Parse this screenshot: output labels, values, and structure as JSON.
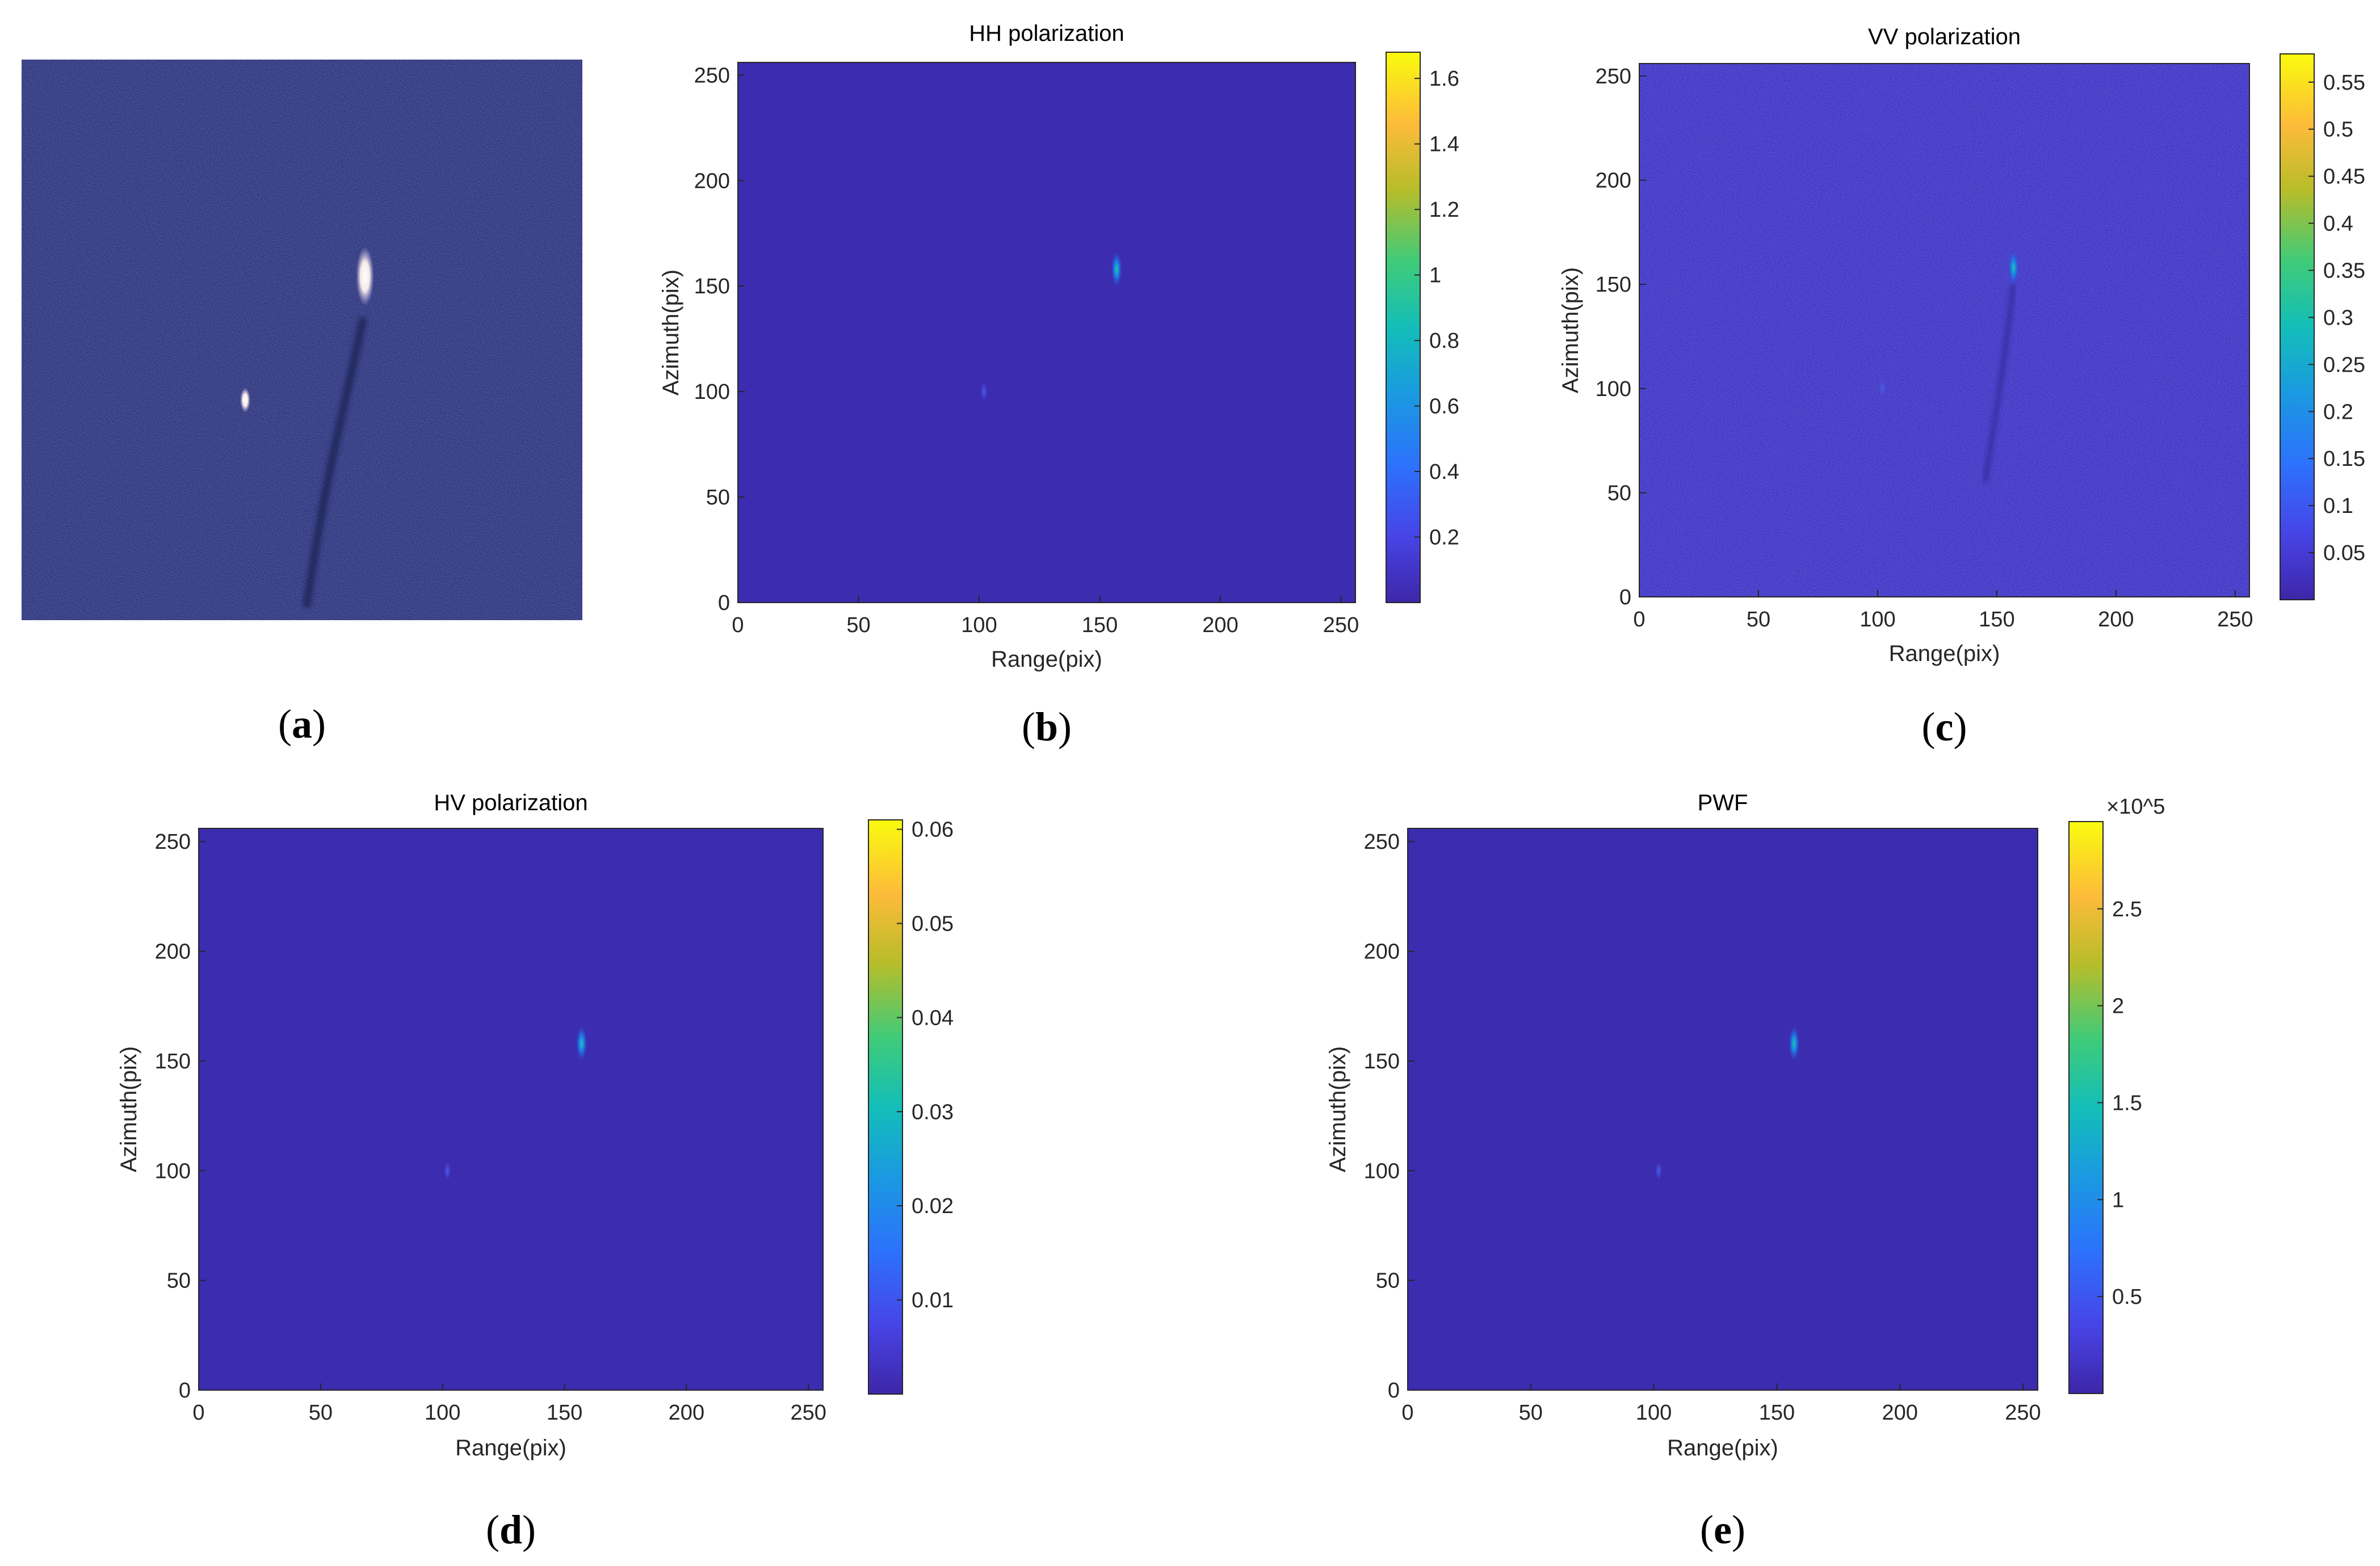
{
  "chart_data": [
    {
      "panel": "a",
      "label_open": "(",
      "label_letter": "a",
      "label_close": ")",
      "type": "image",
      "subject": "SAR intensity image showing a ship with its wake"
    },
    {
      "panel": "b",
      "label_open": "(",
      "label_letter": "b",
      "label_close": ")",
      "type": "heatmap",
      "title": "HH polarization",
      "xlabel": "Range(pix)",
      "ylabel": "Azimuth(pix)",
      "xlim": [
        0,
        256
      ],
      "ylim": [
        0,
        256
      ],
      "xticks": [
        0,
        50,
        100,
        150,
        200,
        250
      ],
      "yticks": [
        0,
        50,
        100,
        150,
        200,
        250
      ],
      "colorbar": {
        "min": 0,
        "max": 1.68,
        "ticks": [
          "0.2",
          "0.4",
          "0.6",
          "0.8",
          "1",
          "1.2",
          "1.4",
          "1.6"
        ],
        "exponent": ""
      },
      "background_level": 0.02,
      "targets": [
        {
          "x": 157,
          "y": 158,
          "value": 0.9,
          "type": "ship"
        },
        {
          "x": 102,
          "y": 100,
          "value": 0.08,
          "type": "ship"
        }
      ]
    },
    {
      "panel": "c",
      "label_open": "(",
      "label_letter": "c",
      "label_close": ")",
      "type": "heatmap",
      "title": "VV polarization",
      "xlabel": "Range(pix)",
      "ylabel": "Azimuth(pix)",
      "xlim": [
        0,
        256
      ],
      "ylim": [
        0,
        256
      ],
      "xticks": [
        0,
        50,
        100,
        150,
        200,
        250
      ],
      "yticks": [
        0,
        50,
        100,
        150,
        200,
        250
      ],
      "colorbar": {
        "min": 0,
        "max": 0.58,
        "ticks": [
          "0.05",
          "0.1",
          "0.15",
          "0.2",
          "0.25",
          "0.3",
          "0.35",
          "0.4",
          "0.45",
          "0.5",
          "0.55"
        ],
        "exponent": ""
      },
      "background_level": 0.04,
      "targets": [
        {
          "x": 157,
          "y": 158,
          "value": 0.33,
          "type": "ship"
        },
        {
          "x": 102,
          "y": 100,
          "value": 0.12,
          "type": "ship"
        }
      ]
    },
    {
      "panel": "d",
      "label_open": "(",
      "label_letter": "d",
      "label_close": ")",
      "type": "heatmap",
      "title": "HV polarization",
      "xlabel": "Range(pix)",
      "ylabel": "Azimuth(pix)",
      "xlim": [
        0,
        256
      ],
      "ylim": [
        0,
        256
      ],
      "xticks": [
        0,
        50,
        100,
        150,
        200,
        250
      ],
      "yticks": [
        0,
        50,
        100,
        150,
        200,
        250
      ],
      "colorbar": {
        "min": 0,
        "max": 0.061,
        "ticks": [
          "0.01",
          "0.02",
          "0.03",
          "0.04",
          "0.05",
          "0.06"
        ],
        "exponent": ""
      },
      "background_level": 0.002,
      "targets": [
        {
          "x": 157,
          "y": 158,
          "value": 0.026,
          "type": "ship"
        },
        {
          "x": 102,
          "y": 100,
          "value": 0.012,
          "type": "ship"
        }
      ]
    },
    {
      "panel": "e",
      "label_open": "(",
      "label_letter": "e",
      "label_close": ")",
      "type": "heatmap",
      "title": "PWF",
      "xlabel": "Range(pix)",
      "ylabel": "Azimuth(pix)",
      "xlim": [
        0,
        256
      ],
      "ylim": [
        0,
        256
      ],
      "xticks": [
        0,
        50,
        100,
        150,
        200,
        250
      ],
      "yticks": [
        0,
        50,
        100,
        150,
        200,
        250
      ],
      "colorbar": {
        "min": 0,
        "max": 2.95,
        "ticks": [
          "0.5",
          "1",
          "1.5",
          "2",
          "2.5"
        ],
        "exponent": "×10^5"
      },
      "background_level": 0.05,
      "targets": [
        {
          "x": 157,
          "y": 158,
          "value": 1.2,
          "type": "ship"
        },
        {
          "x": 102,
          "y": 100,
          "value": 0.35,
          "type": "ship"
        }
      ]
    }
  ],
  "colors": {
    "parula_low": "#3e26a8",
    "parula_mid": "#13beb8",
    "parula_high": "#f9fb0e",
    "sar_background": "#262f78",
    "sar_target": "#ffffff"
  }
}
